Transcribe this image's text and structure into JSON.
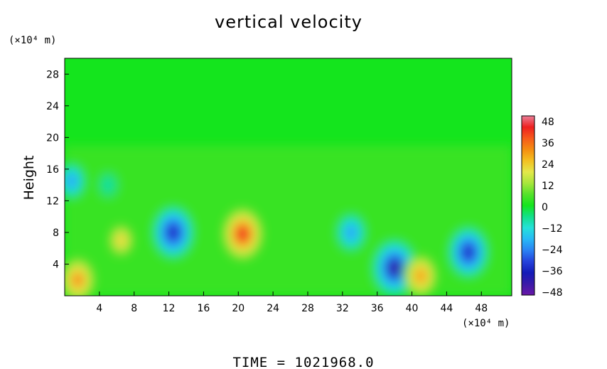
{
  "chart_data": {
    "type": "heatmap",
    "title": "vertical velocity",
    "ylabel": "Height",
    "y_unit": "(×10⁴ m)",
    "x_unit": "(×10⁴ m)",
    "xlim": [
      0,
      51.5
    ],
    "ylim": [
      0,
      30
    ],
    "x_ticks": [
      "4",
      "8",
      "12",
      "16",
      "20",
      "24",
      "28",
      "32",
      "36",
      "40",
      "44",
      "48"
    ],
    "y_ticks": [
      "4",
      "8",
      "12",
      "16",
      "20",
      "24",
      "28"
    ],
    "footer": "TIME = 1021968.0",
    "colorbar": {
      "range": [
        -48,
        48
      ],
      "labels": [
        "48",
        "36",
        "24",
        "12",
        "0",
        "−12",
        "−24",
        "−36",
        "−48"
      ],
      "stops": [
        "#eb7f98",
        "#ee2020",
        "#f75a1a",
        "#f58d10",
        "#f4c021",
        "#e4e84a",
        "#a8e63c",
        "#55e22b",
        "#14e51d",
        "#12e08a",
        "#24e1da",
        "#27b9f6",
        "#2a82f4",
        "#2542dc",
        "#141bb8",
        "#3a1aa8",
        "#6a18a8"
      ]
    },
    "features": [
      {
        "x": 20.5,
        "y": 7.8,
        "value": 42
      },
      {
        "x": 38.0,
        "y": 3.5,
        "value": -42
      },
      {
        "x": 12.5,
        "y": 8.0,
        "value": -38
      },
      {
        "x": 46.5,
        "y": 5.5,
        "value": -36
      },
      {
        "x": 1.5,
        "y": 2.0,
        "value": 34
      },
      {
        "x": 41.0,
        "y": 2.5,
        "value": 32
      },
      {
        "x": 6.5,
        "y": 7.0,
        "value": 22
      },
      {
        "x": 33.0,
        "y": 8.0,
        "value": -24
      },
      {
        "x": 0.8,
        "y": 14.5,
        "value": -22
      },
      {
        "x": 5.0,
        "y": 14.0,
        "value": -12
      }
    ]
  }
}
